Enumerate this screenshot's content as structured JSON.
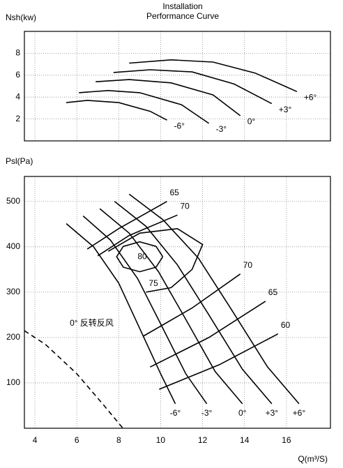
{
  "chart_data": [
    {
      "type": "line",
      "title": "Installation",
      "subtitle": "Performance Curve",
      "ylabel": "Nsh(kw)",
      "xlim": [
        3.5,
        18.1
      ],
      "xticks": [
        4,
        6,
        8,
        10,
        12,
        14,
        16
      ],
      "ylim": [
        0,
        10
      ],
      "yticks": [
        2,
        4,
        6,
        8
      ],
      "grid": true,
      "color": "#000000",
      "series": [
        {
          "name": "-6°",
          "x": [
            5.5,
            6.5,
            8,
            9.5,
            10.3
          ],
          "values": [
            3.5,
            3.7,
            3.5,
            2.7,
            1.9
          ]
        },
        {
          "name": "-3°",
          "x": [
            6.1,
            7.5,
            9,
            11,
            12.3
          ],
          "values": [
            4.4,
            4.6,
            4.4,
            3.3,
            1.6
          ]
        },
        {
          "name": "0°",
          "x": [
            6.9,
            8.5,
            10.5,
            12.5,
            13.8
          ],
          "values": [
            5.4,
            5.6,
            5.3,
            4.2,
            2.3
          ]
        },
        {
          "name": "+3°",
          "x": [
            7.75,
            9.5,
            11.5,
            13.5,
            15.3
          ],
          "values": [
            6.25,
            6.5,
            6.3,
            5.2,
            3.4
          ]
        },
        {
          "name": "+6°",
          "x": [
            8.5,
            10.5,
            12.5,
            14.5,
            16.5
          ],
          "values": [
            7.1,
            7.4,
            7.2,
            6.2,
            4.5
          ]
        }
      ]
    },
    {
      "type": "line",
      "ylabel": "Psl(Pa)",
      "xlabel": "Q(m³/S)",
      "xlim": [
        3.5,
        18.1
      ],
      "xticks": [
        4,
        6,
        8,
        10,
        12,
        14,
        16
      ],
      "ylim": [
        0,
        555
      ],
      "yticks": [
        100,
        200,
        300,
        400,
        500
      ],
      "grid": true,
      "color": "#000000",
      "series": [
        {
          "name": "-6°",
          "x": [
            5.5,
            6.8,
            8,
            9,
            10,
            10.7
          ],
          "values": [
            451,
            400,
            320,
            220,
            120,
            54
          ]
        },
        {
          "name": "-3°",
          "x": [
            6.3,
            7.6,
            8.9,
            10,
            11.2,
            12.2
          ],
          "values": [
            468,
            415,
            330,
            230,
            120,
            54
          ]
        },
        {
          "name": "0°",
          "x": [
            7.1,
            8.5,
            9.9,
            11.2,
            12.6,
            13.9
          ],
          "values": [
            484,
            430,
            345,
            240,
            125,
            54
          ]
        },
        {
          "name": "+3°",
          "x": [
            7.8,
            9.3,
            10.8,
            12.3,
            13.9,
            15.3
          ],
          "values": [
            500,
            445,
            360,
            250,
            130,
            54
          ]
        },
        {
          "name": "+6°",
          "x": [
            8.5,
            10.1,
            11.8,
            13.4,
            15.1,
            16.6
          ],
          "values": [
            516,
            460,
            375,
            260,
            135,
            54
          ]
        }
      ],
      "efficiency": [
        {
          "name": "65",
          "x": [
            6.5,
            8,
            10.3
          ],
          "values": [
            395,
            440,
            500
          ]
        },
        {
          "name": "70",
          "x": [
            7,
            8.5,
            10.8
          ],
          "values": [
            380,
            425,
            470
          ]
        },
        {
          "name": "75",
          "x": [
            7.5,
            9,
            10.8,
            12,
            11.5,
            10.5,
            9.3
          ],
          "values": [
            390,
            430,
            440,
            405,
            350,
            310,
            300
          ]
        },
        {
          "name": "80",
          "x": [
            10.1,
            9.78,
            9,
            8.22,
            7.9,
            8.22,
            9,
            9.78,
            10.1
          ],
          "values": [
            378,
            401,
            411,
            401,
            378,
            355,
            345,
            355,
            378
          ]
        },
        {
          "name": "70",
          "x": [
            9.17,
            11.5,
            13.8
          ],
          "values": [
            203,
            265,
            340
          ]
        },
        {
          "name": "65",
          "x": [
            9.5,
            12.3,
            15
          ],
          "values": [
            135,
            200,
            280
          ]
        },
        {
          "name": "60",
          "x": [
            9.93,
            12.8,
            15.6
          ],
          "values": [
            86,
            140,
            208
          ]
        }
      ],
      "reverse": {
        "name": "0° 反转反风",
        "dashed": true,
        "x": [
          3.5,
          4.5,
          6,
          7.3,
          8.2
        ],
        "values": [
          215,
          185,
          120,
          50,
          0
        ]
      }
    }
  ]
}
